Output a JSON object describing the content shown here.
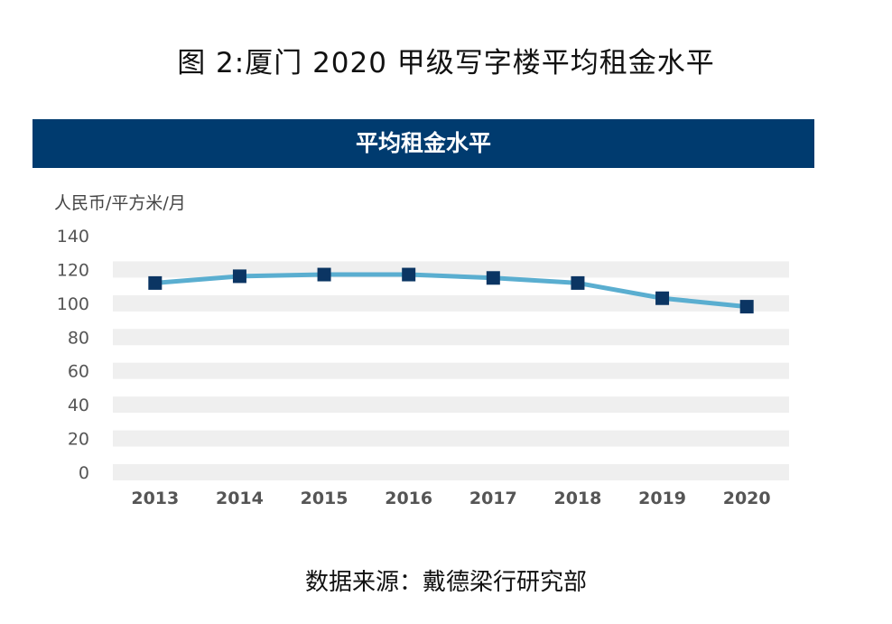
{
  "figure_title": "图 2:厦门 2020 甲级写字楼平均租金水平",
  "source": "数据来源：戴德梁行研究部",
  "colors": {
    "banner": "#003b6f",
    "line": "#5aaed0",
    "marker": "#0b3563",
    "band": "#efefef"
  },
  "chart_data": {
    "type": "line",
    "title": "平均租金水平",
    "ylabel": "人民币/平方米/月",
    "xlabel": "",
    "categories": [
      "2013",
      "2014",
      "2015",
      "2016",
      "2017",
      "2018",
      "2019",
      "2020"
    ],
    "series": [
      {
        "values": [
          112,
          116,
          117,
          117,
          115,
          112,
          103,
          98
        ]
      }
    ],
    "ylim": [
      0,
      140
    ],
    "yticks": [
      0,
      20,
      40,
      60,
      80,
      100,
      120,
      140
    ],
    "grid": "alternating horizontal bands",
    "legend": "none"
  }
}
